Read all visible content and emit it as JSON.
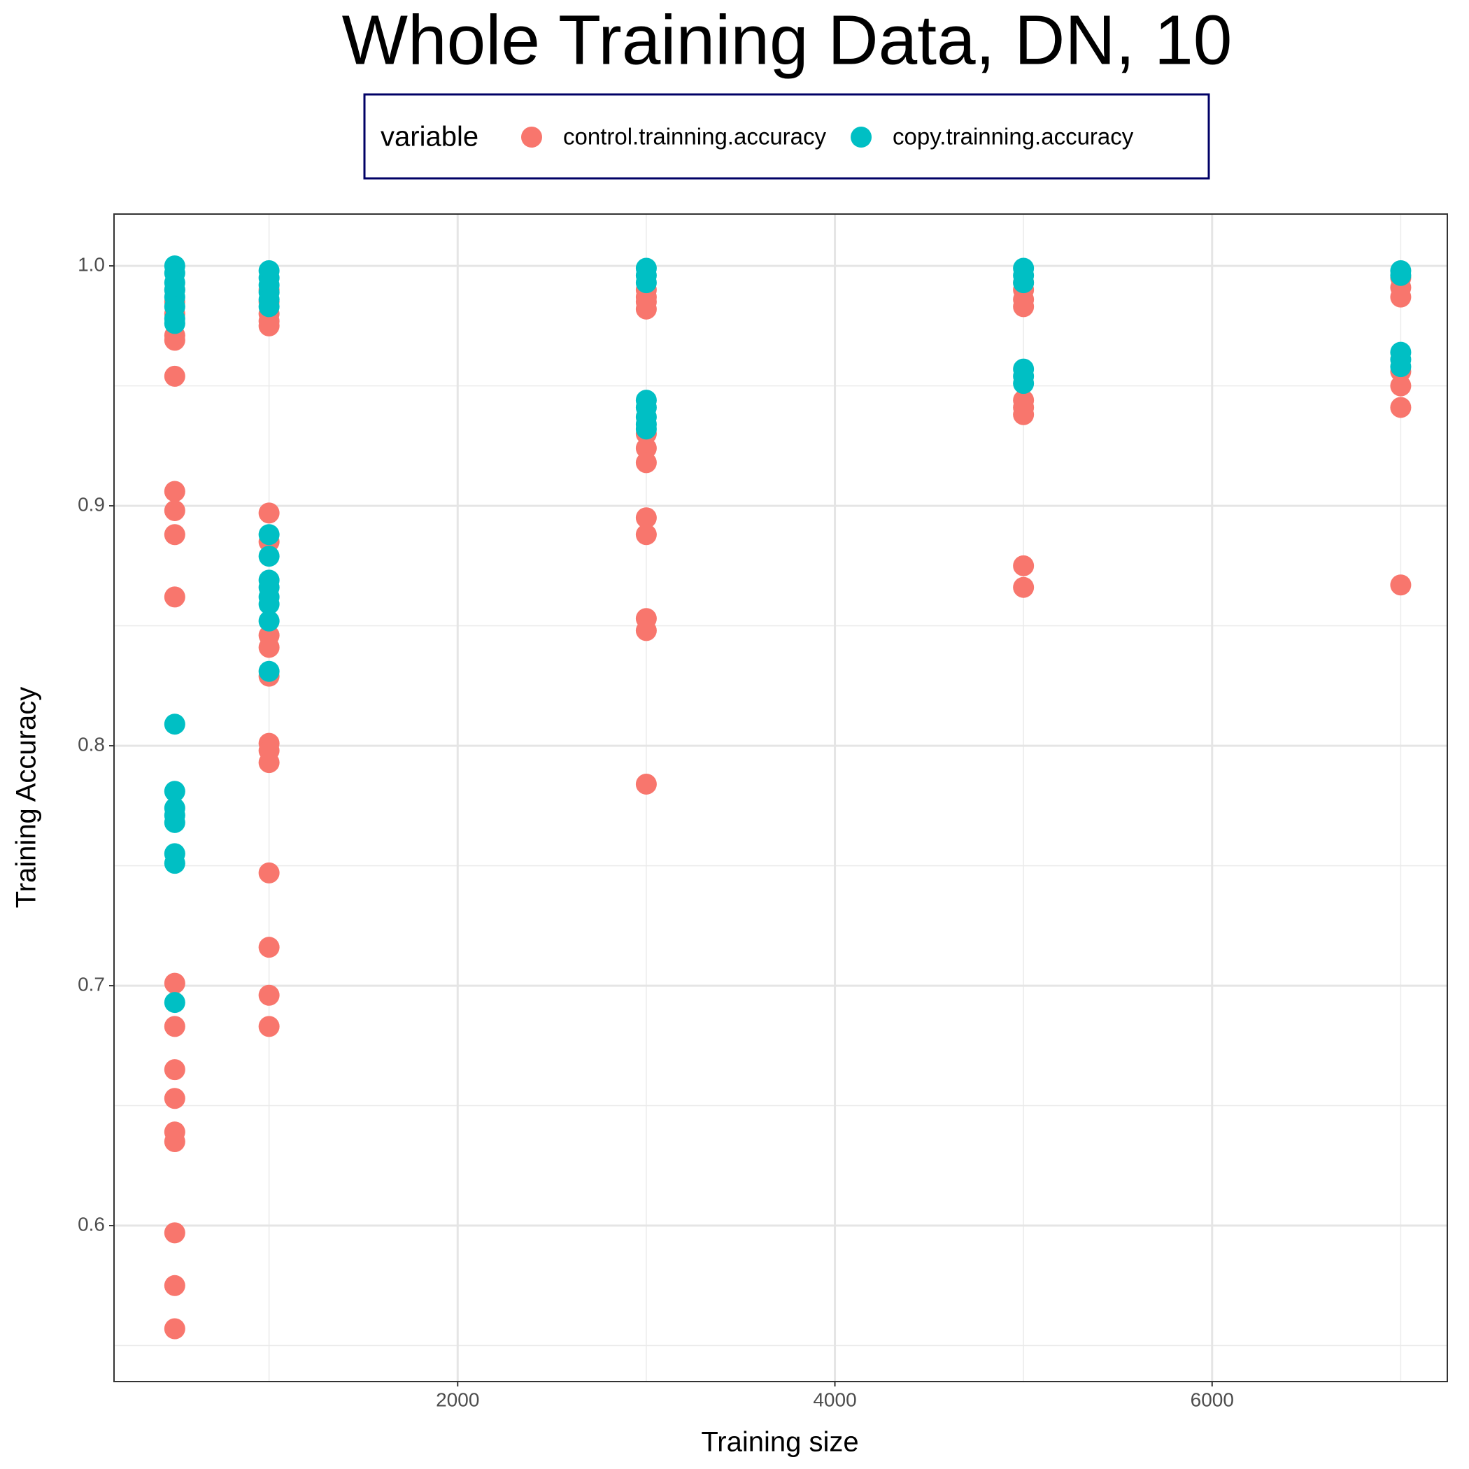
{
  "chart_data": {
    "type": "scatter",
    "title": "Whole Training Data, DN, 10",
    "x_label": "Training size",
    "y_label": "Training Accuracy",
    "legend_title": "variable",
    "legend_position": "top",
    "xlim": [
      178,
      7247
    ],
    "xticks": [
      2000,
      4000,
      6000
    ],
    "xminorticks": [
      1000,
      3000,
      5000,
      7000
    ],
    "ylim": [
      0.535,
      1.0216
    ],
    "yticks": [
      {
        "value": 0.6,
        "label": "0.6"
      },
      {
        "value": 0.7,
        "label": "0.7"
      },
      {
        "value": 0.8,
        "label": "0.8"
      },
      {
        "value": 0.9,
        "label": "0.9"
      },
      {
        "value": 1.0,
        "label": "1.0"
      }
    ],
    "yminorticks": [
      0.55,
      0.65,
      0.75,
      0.85,
      0.95
    ],
    "grid": true,
    "series": [
      {
        "name": "control.trainning.accuracy",
        "color": "#F8766D",
        "x": [
          500,
          500,
          500,
          500,
          500,
          500,
          500,
          500,
          500,
          500,
          500,
          500,
          500,
          500,
          500,
          500,
          500,
          500,
          500,
          1000,
          1000,
          1000,
          1000,
          1000,
          1000,
          1000,
          1000,
          1000,
          1000,
          1000,
          1000,
          1000,
          1000,
          1000,
          1000,
          1000,
          3000,
          3000,
          3000,
          3000,
          3000,
          3000,
          3000,
          3000,
          3000,
          3000,
          3000,
          3000,
          5000,
          5000,
          5000,
          5000,
          5000,
          5000,
          5000,
          5000,
          5000,
          7000,
          7000,
          7000,
          7000,
          7000,
          7000,
          7000
        ],
        "values": [
          0.99,
          0.985,
          0.98,
          0.971,
          0.969,
          0.954,
          0.906,
          0.898,
          0.888,
          0.862,
          0.701,
          0.683,
          0.665,
          0.653,
          0.639,
          0.635,
          0.597,
          0.575,
          0.557,
          0.99,
          0.985,
          0.98,
          0.977,
          0.975,
          0.897,
          0.885,
          0.846,
          0.841,
          0.829,
          0.801,
          0.798,
          0.793,
          0.747,
          0.716,
          0.696,
          0.683,
          0.99,
          0.987,
          0.985,
          0.982,
          0.93,
          0.924,
          0.918,
          0.895,
          0.888,
          0.853,
          0.848,
          0.784,
          0.993,
          0.99,
          0.986,
          0.983,
          0.944,
          0.941,
          0.938,
          0.875,
          0.866,
          0.995,
          0.991,
          0.987,
          0.956,
          0.95,
          0.941,
          0.867
        ]
      },
      {
        "name": "copy.trainning.accuracy",
        "color": "#00BFC4",
        "x": [
          500,
          500,
          500,
          500,
          500,
          500,
          500,
          500,
          500,
          500,
          500,
          500,
          500,
          500,
          500,
          500,
          1000,
          1000,
          1000,
          1000,
          1000,
          1000,
          1000,
          1000,
          1000,
          1000,
          1000,
          1000,
          1000,
          1000,
          3000,
          3000,
          3000,
          3000,
          3000,
          3000,
          3000,
          3000,
          5000,
          5000,
          5000,
          5000,
          5000,
          5000,
          7000,
          7000,
          7000,
          7000,
          7000
        ],
        "values": [
          1.0,
          0.997,
          0.993,
          0.99,
          0.987,
          0.983,
          0.978,
          0.976,
          0.809,
          0.781,
          0.774,
          0.771,
          0.768,
          0.755,
          0.751,
          0.693,
          0.998,
          0.995,
          0.992,
          0.989,
          0.986,
          0.983,
          0.888,
          0.879,
          0.869,
          0.866,
          0.862,
          0.859,
          0.852,
          0.831,
          0.999,
          0.996,
          0.993,
          0.944,
          0.941,
          0.937,
          0.934,
          0.932,
          0.999,
          0.996,
          0.993,
          0.957,
          0.954,
          0.951,
          0.998,
          0.996,
          0.964,
          0.961,
          0.958
        ]
      }
    ]
  }
}
